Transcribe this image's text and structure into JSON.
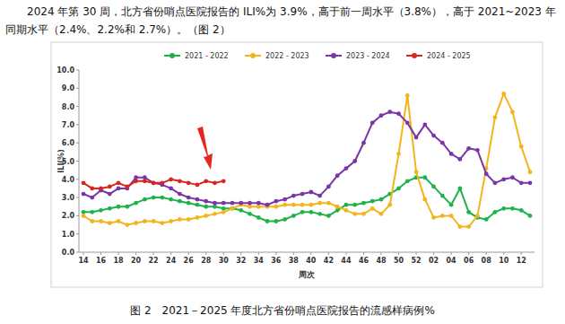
{
  "intro": "2024 年第 30 周，北方省份哨点医院报告的 ILI%为 3.9%，高于前一周水平（3.8%），高于 2021~2023 年同期水平（2.4%、2.2%和 2.7%）。（图 2）",
  "caption": "图 2　2021－2025 年度北方省份哨点医院报告的流感样病例%",
  "chart_data": {
    "type": "line",
    "xlabel": "周次",
    "ylabel": "ILI(%)",
    "categories": [
      "14",
      null,
      "16",
      null,
      "18",
      null,
      "20",
      null,
      "22",
      null,
      "24",
      null,
      "26",
      null,
      "28",
      null,
      "30",
      null,
      "32",
      null,
      "34",
      null,
      "36",
      null,
      "38",
      null,
      "40",
      null,
      "42",
      null,
      "44",
      null,
      "46",
      null,
      "48",
      null,
      "50",
      null,
      "52",
      null,
      "02",
      null,
      "04",
      null,
      "06",
      null,
      "08",
      null,
      "10",
      null,
      "12",
      null
    ],
    "ylim": [
      0,
      10
    ],
    "yticks": [
      {
        "value": 0,
        "label": "0.0"
      },
      {
        "value": 1,
        "label": "1.0"
      },
      {
        "value": 2,
        "label": "2.0"
      },
      {
        "value": 3,
        "label": "3.0"
      },
      {
        "value": 4,
        "label": "4.0"
      },
      {
        "value": 5,
        "label": "5.0"
      },
      {
        "value": 6,
        "label": "6.0"
      },
      {
        "value": 7,
        "label": "7.0"
      },
      {
        "value": 8,
        "label": "8.0"
      },
      {
        "value": 9,
        "label": "9.0"
      },
      {
        "value": 10,
        "label": "10.0"
      }
    ],
    "grid": false,
    "legend": "top",
    "series": [
      {
        "name": "2021 - 2022",
        "color": "#1fb24a",
        "marker": "circle",
        "values": [
          2.2,
          2.2,
          2.3,
          2.4,
          2.5,
          2.5,
          2.7,
          2.9,
          3.0,
          3.0,
          2.9,
          2.8,
          2.7,
          2.6,
          2.5,
          2.5,
          2.4,
          2.4,
          2.3,
          2.1,
          1.9,
          1.7,
          1.7,
          1.8,
          2.0,
          2.2,
          2.2,
          2.1,
          2.0,
          2.3,
          2.6,
          2.6,
          2.7,
          2.8,
          2.9,
          3.2,
          3.5,
          3.9,
          4.1,
          4.1,
          3.6,
          3.1,
          2.6,
          3.5,
          2.2,
          1.9,
          1.8,
          2.2,
          2.4,
          2.4,
          2.3,
          2.0
        ]
      },
      {
        "name": "2022 - 2023",
        "color": "#f2b51c",
        "marker": "circle",
        "values": [
          2.0,
          1.7,
          1.7,
          1.6,
          1.7,
          1.5,
          1.6,
          1.7,
          1.7,
          1.6,
          1.7,
          1.8,
          1.8,
          1.9,
          2.0,
          2.1,
          2.2,
          2.4,
          2.6,
          2.5,
          2.5,
          2.5,
          2.5,
          2.6,
          2.6,
          2.6,
          2.6,
          2.7,
          2.7,
          2.5,
          2.3,
          2.1,
          2.1,
          2.4,
          2.1,
          2.6,
          5.4,
          8.6,
          4.4,
          2.9,
          1.9,
          2.0,
          2.0,
          1.4,
          1.4,
          2.0,
          4.6,
          7.4,
          8.7,
          7.7,
          5.8,
          4.4
        ]
      },
      {
        "name": "2023 - 2024",
        "color": "#7a35a8",
        "marker": "circle",
        "values": [
          3.2,
          3.0,
          3.4,
          3.2,
          3.5,
          3.5,
          4.1,
          4.1,
          3.8,
          3.7,
          3.5,
          3.2,
          3.0,
          2.9,
          2.8,
          2.7,
          2.7,
          2.7,
          2.7,
          2.7,
          2.7,
          2.6,
          2.8,
          2.9,
          3.1,
          3.2,
          3.3,
          3.1,
          3.6,
          4.2,
          4.6,
          5.0,
          6.0,
          7.1,
          7.5,
          7.7,
          7.6,
          7.1,
          6.3,
          7.0,
          6.4,
          6.0,
          5.4,
          5.1,
          5.7,
          5.6,
          4.3,
          3.8,
          4.0,
          4.1,
          3.8,
          3.8
        ]
      },
      {
        "name": "2024 - 2025",
        "color": "#d7261e",
        "marker": "circle",
        "values": [
          3.8,
          3.5,
          3.5,
          3.6,
          3.8,
          3.6,
          3.9,
          3.9,
          3.8,
          3.8,
          4.0,
          3.9,
          3.8,
          3.7,
          3.9,
          3.8,
          3.9,
          null,
          null,
          null,
          null,
          null,
          null,
          null,
          null,
          null,
          null,
          null,
          null,
          null,
          null,
          null,
          null,
          null,
          null,
          null,
          null,
          null,
          null,
          null,
          null,
          null,
          null,
          null,
          null,
          null,
          null,
          null,
          null,
          null,
          null,
          null
        ]
      }
    ]
  }
}
